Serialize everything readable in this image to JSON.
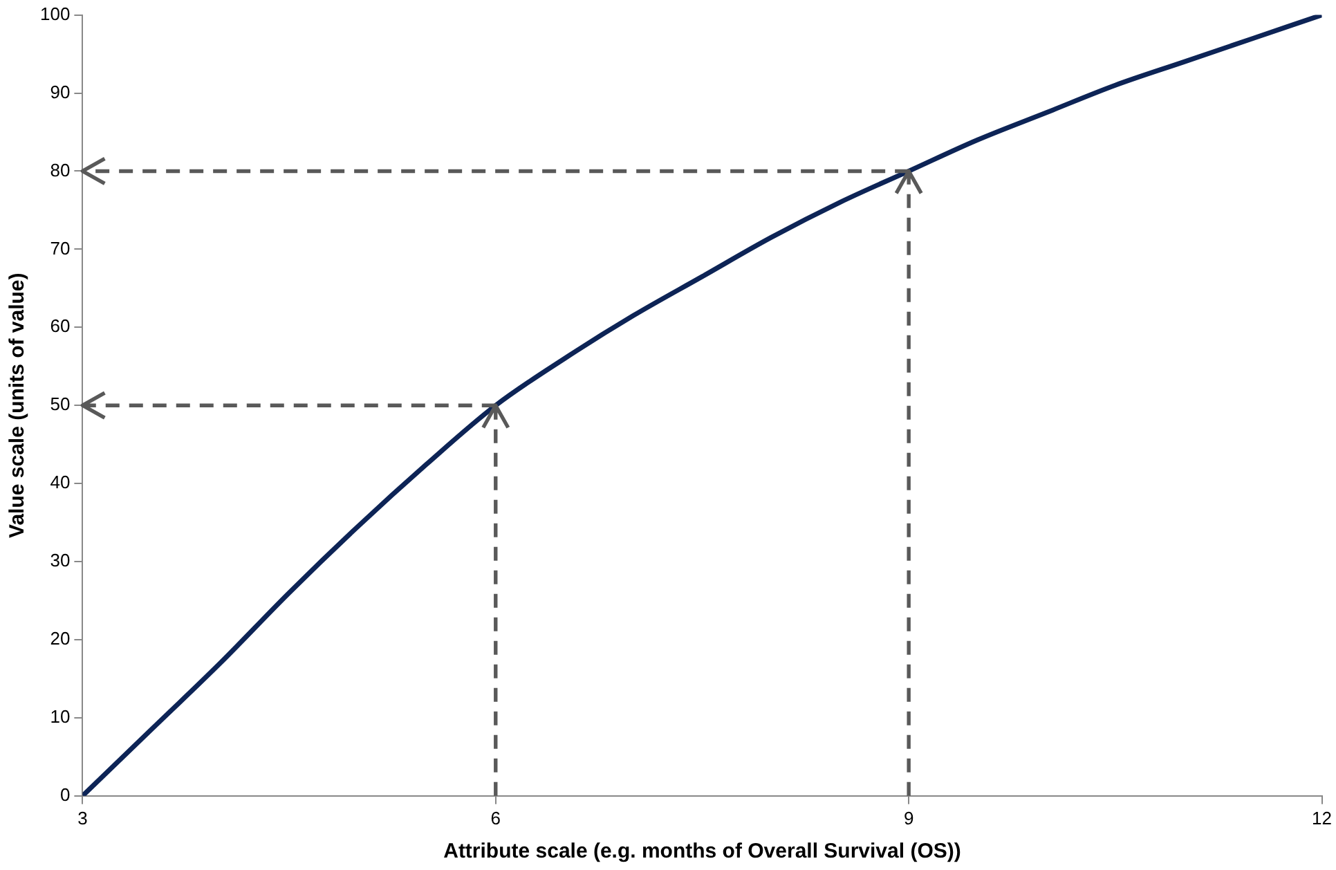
{
  "chart_data": {
    "type": "line",
    "xlabel": "Attribute scale (e.g. months of Overall Survival (OS))",
    "ylabel": "Value scale (units of value)",
    "xlim": [
      3,
      12
    ],
    "xticks": [
      3,
      6,
      9,
      12
    ],
    "ylim": [
      0,
      100
    ],
    "yticks": [
      0,
      10,
      20,
      30,
      40,
      50,
      60,
      70,
      80,
      90,
      100
    ],
    "grid": false,
    "legend": false,
    "marker": "none",
    "line_style": "solid",
    "series": [
      {
        "color": "#0d2456",
        "x": [
          3,
          3.5,
          4,
          4.5,
          5,
          5.5,
          6,
          6.5,
          7,
          7.5,
          8,
          8.5,
          9,
          9.5,
          10,
          10.5,
          11,
          11.5,
          12
        ],
        "values": [
          0,
          8.5,
          17,
          26,
          34.5,
          42.5,
          50,
          56,
          61.5,
          66.5,
          71.5,
          76,
          80,
          84,
          87.5,
          91,
          94,
          97,
          100
        ]
      }
    ]
  }
}
